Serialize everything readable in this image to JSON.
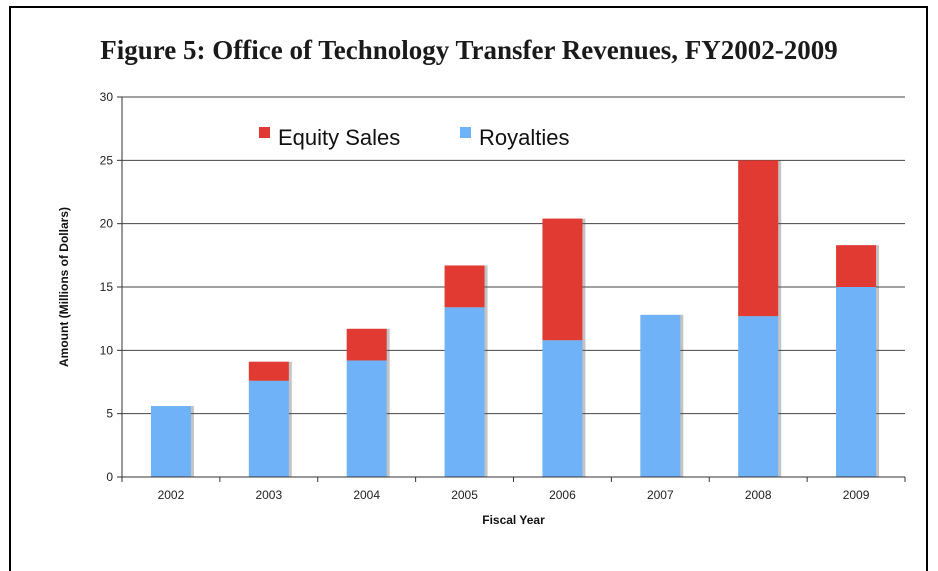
{
  "figure_title": "Figure 5: Office of Technology Transfer Revenues, FY2002-2009",
  "colors": {
    "equity": "#e03a32",
    "royalties": "#6fb2f7",
    "grid": "#444444"
  },
  "chart_data": {
    "type": "bar",
    "stacked": true,
    "categories": [
      "2002",
      "2003",
      "2004",
      "2005",
      "2006",
      "2007",
      "2008",
      "2009"
    ],
    "series": [
      {
        "name": "Royalties",
        "values": [
          5.6,
          7.6,
          9.2,
          13.4,
          10.8,
          12.8,
          12.7,
          15.0
        ]
      },
      {
        "name": "Equity Sales",
        "values": [
          0,
          1.5,
          2.5,
          3.3,
          9.6,
          0,
          12.3,
          3.3
        ]
      }
    ],
    "xlabel": "Fiscal Year",
    "ylabel": "Amount (Millions of Dollars)",
    "ylim": [
      0,
      30
    ],
    "yticks": [
      "0",
      "5",
      "10",
      "15",
      "20",
      "25",
      "30"
    ],
    "grid": true,
    "legend_position": "top-left"
  }
}
